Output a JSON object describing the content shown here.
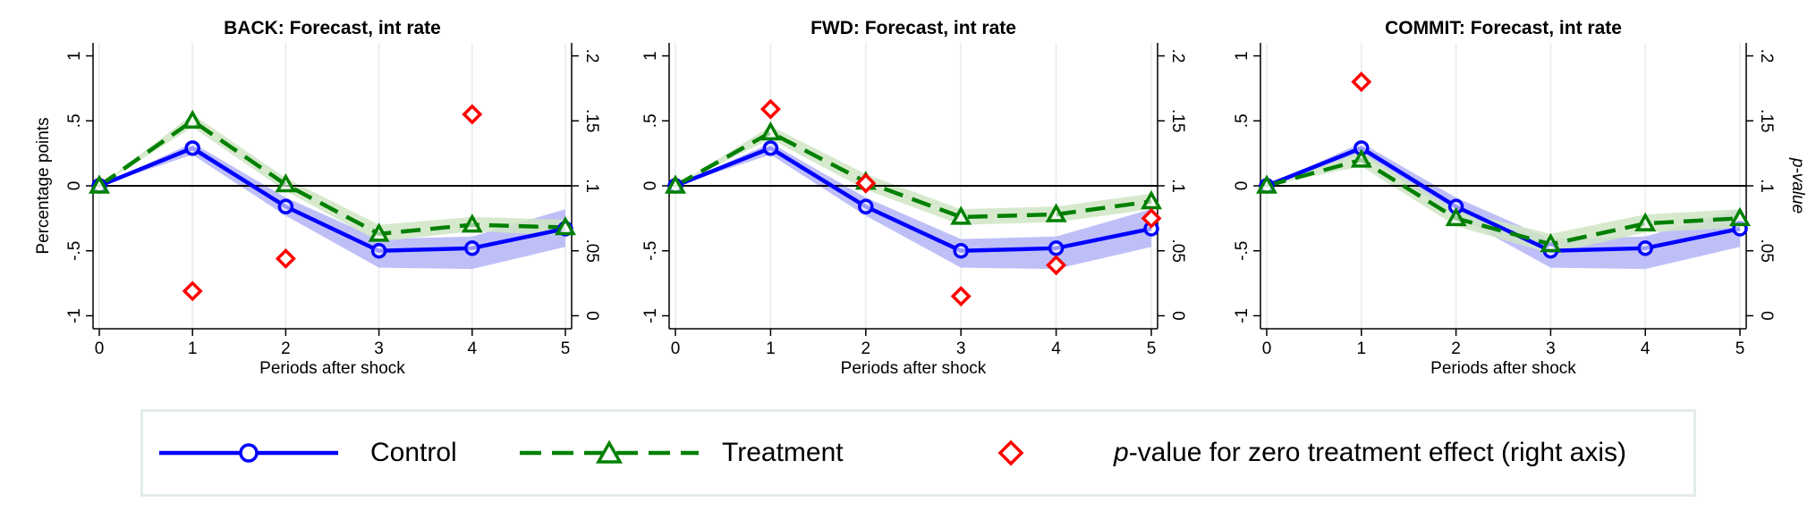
{
  "colors": {
    "control": "#0000ff",
    "control_band": "#b4b4f7",
    "treatment": "#008000",
    "treatment_band": "#cfe5c4",
    "pvalue": "#ff0000",
    "grid": "#eaf0ee"
  },
  "chart_data": [
    {
      "type": "line",
      "title": "BACK: Forecast, int rate",
      "xlabel": "Periods after shock",
      "ylabel": "Percentage points",
      "y2label": "",
      "x": [
        0,
        1,
        2,
        3,
        4,
        5
      ],
      "ylim": [
        -1.1,
        1.1
      ],
      "y2lim": [
        -0.01,
        0.21
      ],
      "yticks": [
        "-1",
        "-.5",
        "0",
        ".5",
        "1"
      ],
      "y2ticks": [
        "0",
        ".05",
        ".1",
        ".15",
        ".2"
      ],
      "grid": true,
      "series": [
        {
          "name": "Control",
          "values": [
            0,
            0.29,
            -0.16,
            -0.5,
            -0.48,
            -0.33
          ],
          "band_low": [
            0,
            0.24,
            -0.23,
            -0.63,
            -0.64,
            -0.47
          ],
          "band_high": [
            0,
            0.33,
            -0.09,
            -0.41,
            -0.39,
            -0.18
          ]
        },
        {
          "name": "Treatment",
          "values": [
            0,
            0.5,
            0.01,
            -0.37,
            -0.3,
            -0.32
          ],
          "band_low": [
            0,
            0.45,
            -0.04,
            -0.43,
            -0.35,
            -0.38
          ],
          "band_high": [
            0,
            0.55,
            0.06,
            -0.3,
            -0.24,
            -0.26
          ]
        },
        {
          "name": "p-value for zero treatment effect (right axis)",
          "axis": "right",
          "values": [
            null,
            0.019,
            0.044,
            null,
            0.155,
            null
          ]
        }
      ]
    },
    {
      "type": "line",
      "title": "FWD: Forecast, int rate",
      "xlabel": "Periods after shock",
      "ylabel": "",
      "y2label": "",
      "x": [
        0,
        1,
        2,
        3,
        4,
        5
      ],
      "ylim": [
        -1.1,
        1.1
      ],
      "y2lim": [
        -0.01,
        0.21
      ],
      "yticks": [
        "-1",
        "-.5",
        "0",
        ".5",
        "1"
      ],
      "y2ticks": [
        "0",
        ".05",
        ".1",
        ".15",
        ".2"
      ],
      "grid": true,
      "series": [
        {
          "name": "Control",
          "values": [
            0,
            0.29,
            -0.16,
            -0.5,
            -0.48,
            -0.33
          ],
          "band_low": [
            0,
            0.24,
            -0.23,
            -0.63,
            -0.64,
            -0.47
          ],
          "band_high": [
            0,
            0.33,
            -0.09,
            -0.41,
            -0.39,
            -0.18
          ]
        },
        {
          "name": "Treatment",
          "values": [
            0,
            0.41,
            0.03,
            -0.24,
            -0.22,
            -0.12
          ],
          "band_low": [
            0,
            0.36,
            -0.03,
            -0.3,
            -0.28,
            -0.18
          ],
          "band_high": [
            0,
            0.46,
            0.09,
            -0.18,
            -0.16,
            -0.06
          ]
        },
        {
          "name": "p-value for zero treatment effect (right axis)",
          "axis": "right",
          "values": [
            null,
            0.159,
            0.102,
            0.015,
            0.039,
            0.075
          ]
        }
      ]
    },
    {
      "type": "line",
      "title": "COMMIT: Forecast, int rate",
      "xlabel": "Periods after shock",
      "ylabel": "",
      "y2label": "p-value",
      "x": [
        0,
        1,
        2,
        3,
        4,
        5
      ],
      "ylim": [
        -1.1,
        1.1
      ],
      "y2lim": [
        -0.01,
        0.21
      ],
      "yticks": [
        "-1",
        "-.5",
        "0",
        ".5",
        "1"
      ],
      "y2ticks": [
        "0",
        ".05",
        ".1",
        ".15",
        ".2"
      ],
      "grid": true,
      "series": [
        {
          "name": "Control",
          "values": [
            0,
            0.29,
            -0.16,
            -0.5,
            -0.48,
            -0.33
          ],
          "band_low": [
            0,
            0.24,
            -0.23,
            -0.63,
            -0.64,
            -0.47
          ],
          "band_high": [
            0,
            0.33,
            -0.09,
            -0.41,
            -0.39,
            -0.18
          ]
        },
        {
          "name": "Treatment",
          "values": [
            0,
            0.2,
            -0.25,
            -0.45,
            -0.29,
            -0.25
          ],
          "band_low": [
            0,
            0.15,
            -0.31,
            -0.52,
            -0.36,
            -0.32
          ],
          "band_high": [
            0,
            0.26,
            -0.19,
            -0.37,
            -0.22,
            -0.18
          ]
        },
        {
          "name": "p-value for zero treatment effect (right axis)",
          "axis": "right",
          "values": [
            null,
            0.18,
            null,
            null,
            null,
            null
          ]
        }
      ]
    }
  ],
  "legend": {
    "control_label": "Control",
    "treatment_label": "Treatment",
    "pvalue_italic": "p",
    "pvalue_rest": "-value for zero treatment effect (right axis)"
  }
}
